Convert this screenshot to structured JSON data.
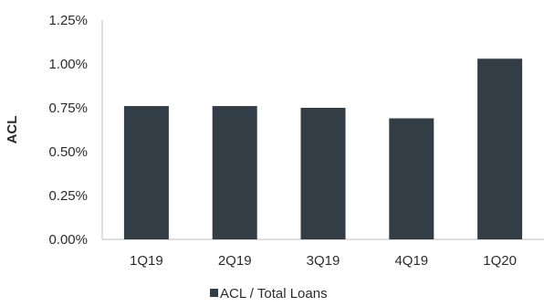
{
  "chart_data": {
    "type": "bar",
    "categories": [
      "1Q19",
      "2Q19",
      "3Q19",
      "4Q19",
      "1Q20"
    ],
    "series": [
      {
        "name": "ACL / Total Loans",
        "values": [
          0.76,
          0.76,
          0.75,
          0.69,
          1.03
        ]
      }
    ],
    "ylabel": "ACL",
    "ylim": [
      0,
      1.25
    ],
    "yticks": [
      0,
      0.25,
      0.5,
      0.75,
      1.0,
      1.25
    ],
    "ytick_labels": [
      "0.00%",
      "0.25%",
      "0.50%",
      "0.75%",
      "1.00%",
      "1.25%"
    ],
    "grid": false,
    "legend_position": "bottom",
    "colors": {
      "bar": "#333d46",
      "axis": "#bfbfbf"
    }
  }
}
